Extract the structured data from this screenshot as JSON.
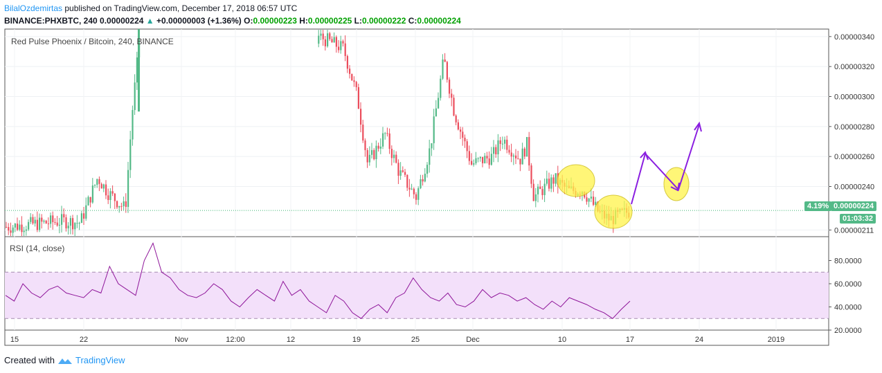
{
  "header": {
    "author": "BilalOzdemirtas",
    "published": "published on TradingView.com, December 17, 2018 06:57 UTC",
    "symbol": "BINANCE:PHXBTC, 240",
    "last": "0.00000224",
    "change": "+0.00000003 (+1.36%)",
    "o_label": "O:",
    "o_value": "0.00000223",
    "h_label": "H:",
    "h_value": "0.00000225",
    "l_label": "L:",
    "l_value": "0.00000222",
    "c_label": "C:",
    "c_value": "0.00000224"
  },
  "main_legend": "Red Pulse Phoenix / Bitcoin, 240, BINANCE",
  "rsi_legend": "RSI (14, close)",
  "price_badge": {
    "pct": "4.19%",
    "price": "0.00000224",
    "countdown": "01:03:32"
  },
  "footer": {
    "created": "Created with",
    "brand": "TradingView"
  },
  "colors": {
    "up": "#53b987",
    "down": "#eb4d5c",
    "rsi": "#8e1599",
    "rsi_band": "#f3e0fa",
    "arrow": "#8a1ee0",
    "ellipse": "#fff34a",
    "last_line": "#3cb371"
  },
  "chart_data": [
    {
      "type": "candlestick",
      "title": "Red Pulse Phoenix / Bitcoin, 240, BINANCE",
      "ylim": [
        2.07e-06,
        3.45e-06
      ],
      "y_ticks": [
        "0.00000211",
        "0.00000240",
        "0.00000260",
        "0.00000280",
        "0.00000300",
        "0.00000320",
        "0.00000340"
      ],
      "x_ticks": [
        "15",
        "22",
        "Nov",
        "12:00",
        "12",
        "19",
        "25",
        "Dec",
        "10",
        "17",
        "24",
        "2019"
      ],
      "close_path": [
        {
          "x": "15",
          "y": 2.13e-06
        },
        {
          "x": "18",
          "y": 2.17e-06
        },
        {
          "x": "22",
          "y": 2.16e-06
        },
        {
          "x": "23",
          "y": 2.46e-06
        },
        {
          "x": "24",
          "y": 2.36e-06
        },
        {
          "x": "25",
          "y": 2.25e-06
        },
        {
          "x": "26",
          "y": 2.9e-06
        },
        {
          "x": "27",
          "y": 3.45e-06
        },
        {
          "x": "15 Nov",
          "y": 3.4e-06
        },
        {
          "x": "17 Nov",
          "y": 3.32e-06
        },
        {
          "x": "19 Nov",
          "y": 3e-06
        },
        {
          "x": "20 Nov",
          "y": 2.55e-06
        },
        {
          "x": "22 Nov",
          "y": 2.75e-06
        },
        {
          "x": "23 Nov",
          "y": 2.5e-06
        },
        {
          "x": "25 Nov",
          "y": 2.33e-06
        },
        {
          "x": "26 Nov",
          "y": 2.65e-06
        },
        {
          "x": "28 Nov",
          "y": 3.25e-06
        },
        {
          "x": "29 Nov",
          "y": 2.9e-06
        },
        {
          "x": "1 Dec",
          "y": 2.55e-06
        },
        {
          "x": "3 Dec",
          "y": 2.6e-06
        },
        {
          "x": "4 Dec",
          "y": 2.72e-06
        },
        {
          "x": "6 Dec",
          "y": 2.58e-06
        },
        {
          "x": "7 Dec",
          "y": 2.68e-06
        },
        {
          "x": "8 Dec",
          "y": 2.33e-06
        },
        {
          "x": "10 Dec",
          "y": 2.45e-06
        },
        {
          "x": "11 Dec",
          "y": 2.37e-06
        },
        {
          "x": "13 Dec",
          "y": 2.38e-06
        },
        {
          "x": "14 Dec",
          "y": 2.22e-06
        },
        {
          "x": "15 Dec",
          "y": 2.18e-06
        },
        {
          "x": "17 Dec",
          "y": 2.24e-06
        }
      ],
      "last_price": 2.24e-06
    },
    {
      "type": "line",
      "title": "RSI (14, close)",
      "ylim": [
        20,
        100
      ],
      "y_ticks": [
        "20.0000",
        "40.0000",
        "60.0000",
        "80.0000"
      ],
      "band": [
        30,
        70
      ],
      "series": [
        {
          "values": [
            50,
            45,
            60,
            52,
            48,
            55,
            58,
            52,
            50,
            48,
            55,
            52,
            75,
            60,
            55,
            50,
            80,
            95,
            70,
            65,
            55,
            50,
            48,
            52,
            60,
            55,
            45,
            40,
            48,
            55,
            50,
            45,
            62,
            50,
            55,
            45,
            40,
            35,
            50,
            45,
            35,
            30,
            38,
            42,
            35,
            48,
            52,
            65,
            55,
            48,
            45,
            52,
            42,
            40,
            45,
            55,
            48,
            52,
            50,
            45,
            48,
            42,
            38,
            45,
            40,
            48,
            45,
            42,
            38,
            35,
            30,
            38,
            45
          ]
        }
      ]
    }
  ]
}
